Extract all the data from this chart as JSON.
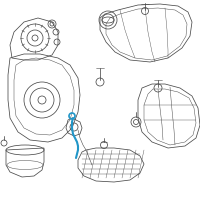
{
  "background_color": "#ffffff",
  "line_color": "#4a4a4a",
  "light_color": "#888888",
  "highlight_color": "#2196C8",
  "fig_width": 2.0,
  "fig_height": 2.0,
  "dpi": 100
}
